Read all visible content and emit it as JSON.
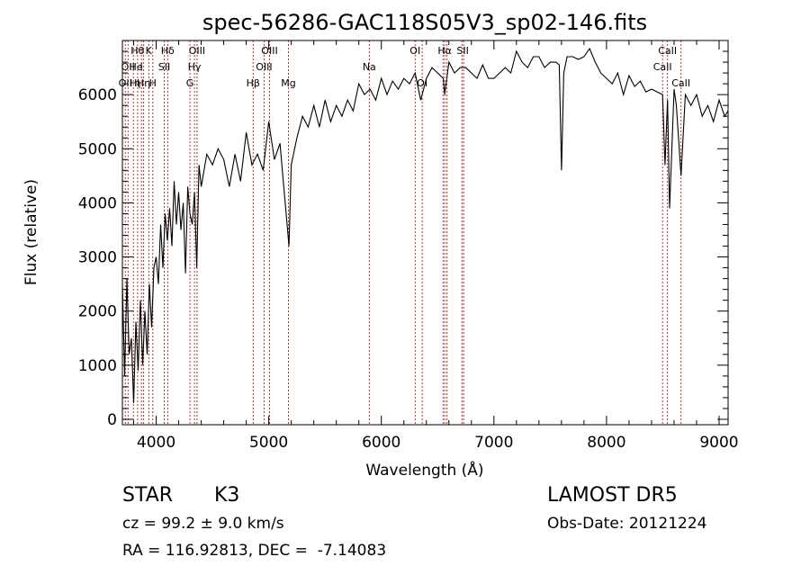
{
  "chart_data": {
    "type": "line",
    "title": "spec-56286-GAC118S05V3_sp02-146.fits",
    "xlabel": "Wavelength (Å)",
    "ylabel": "Flux (relative)",
    "xlim": [
      3700,
      9080
    ],
    "ylim": [
      -100,
      7000
    ],
    "x_ticks": [
      4000,
      5000,
      6000,
      7000,
      8000,
      9000
    ],
    "y_ticks": [
      0,
      1000,
      2000,
      3000,
      4000,
      5000,
      6000
    ],
    "x_tick_labels": [
      "4000",
      "5000",
      "6000",
      "7000",
      "8000",
      "9000"
    ],
    "y_tick_labels": [
      "0",
      "1000",
      "2000",
      "3000",
      "4000",
      "5000",
      "6000"
    ],
    "grid": false,
    "series": [
      {
        "color": "#000000",
        "x": [
          3700,
          3720,
          3740,
          3760,
          3780,
          3800,
          3820,
          3840,
          3860,
          3880,
          3900,
          3920,
          3940,
          3960,
          3980,
          4000,
          4020,
          4040,
          4060,
          4080,
          4100,
          4120,
          4140,
          4160,
          4180,
          4200,
          4220,
          4240,
          4260,
          4280,
          4300,
          4320,
          4340,
          4360,
          4380,
          4400,
          4450,
          4500,
          4550,
          4600,
          4650,
          4700,
          4750,
          4800,
          4850,
          4900,
          4950,
          5000,
          5050,
          5100,
          5150,
          5180,
          5200,
          5250,
          5300,
          5350,
          5400,
          5450,
          5500,
          5550,
          5600,
          5650,
          5700,
          5750,
          5800,
          5850,
          5900,
          5950,
          6000,
          6050,
          6100,
          6150,
          6200,
          6250,
          6300,
          6350,
          6400,
          6450,
          6500,
          6550,
          6563,
          6600,
          6650,
          6700,
          6750,
          6800,
          6850,
          6900,
          6950,
          7000,
          7050,
          7100,
          7150,
          7200,
          7250,
          7300,
          7350,
          7400,
          7450,
          7500,
          7550,
          7580,
          7600,
          7620,
          7650,
          7700,
          7750,
          7800,
          7850,
          7900,
          7950,
          8000,
          8050,
          8100,
          8150,
          8200,
          8250,
          8300,
          8350,
          8400,
          8450,
          8498,
          8520,
          8542,
          8560,
          8600,
          8620,
          8662,
          8700,
          8750,
          8800,
          8850,
          8900,
          8950,
          9000,
          9050,
          9080
        ],
        "y": [
          2500,
          800,
          2600,
          1200,
          1500,
          300,
          1800,
          900,
          2200,
          1000,
          2000,
          1200,
          2500,
          1700,
          2800,
          3000,
          2500,
          3600,
          2800,
          3800,
          3300,
          3900,
          3200,
          4400,
          3600,
          4200,
          3500,
          4000,
          2700,
          4300,
          3800,
          3600,
          4200,
          2800,
          4700,
          4300,
          4900,
          4700,
          5000,
          4800,
          4300,
          4900,
          4400,
          5300,
          4700,
          4900,
          4600,
          5500,
          4800,
          5100,
          3900,
          3200,
          4700,
          5200,
          5600,
          5400,
          5800,
          5400,
          5900,
          5500,
          5800,
          5600,
          5900,
          5700,
          6200,
          6000,
          6100,
          5900,
          6300,
          6000,
          6250,
          6100,
          6300,
          6200,
          6400,
          5900,
          6300,
          6500,
          6400,
          6300,
          6000,
          6600,
          6400,
          6500,
          6500,
          6400,
          6300,
          6550,
          6300,
          6300,
          6400,
          6500,
          6400,
          6800,
          6600,
          6500,
          6700,
          6700,
          6500,
          6600,
          6600,
          6550,
          4600,
          6400,
          6700,
          6700,
          6650,
          6700,
          6850,
          6600,
          6400,
          6300,
          6200,
          6400,
          6000,
          6350,
          6150,
          6250,
          6050,
          6100,
          6050,
          6000,
          4700,
          5900,
          3900,
          6100,
          5800,
          4500,
          6000,
          5800,
          6000,
          5600,
          5800,
          5500,
          5900,
          5600,
          5700
        ]
      }
    ],
    "line_labels": [
      {
        "wl": 3726,
        "row": 2,
        "text": "OII"
      },
      {
        "wl": 3750,
        "row": 1,
        "text": "OII"
      },
      {
        "wl": 3798,
        "row": 2,
        "text": "H"
      },
      {
        "wl": 3834,
        "row": 0,
        "text": "Hθ"
      },
      {
        "wl": 3820,
        "row": 1,
        "text": "He"
      },
      {
        "wl": 3835,
        "row": 2,
        "text": "η"
      },
      {
        "wl": 3869,
        "row": 1,
        "text": "I"
      },
      {
        "wl": 3889,
        "row": 2,
        "text": "Hη"
      },
      {
        "wl": 3934,
        "row": 0,
        "text": "K"
      },
      {
        "wl": 3970,
        "row": 2,
        "text": "H"
      },
      {
        "wl": 4072,
        "row": 1,
        "text": "SII"
      },
      {
        "wl": 4102,
        "row": 0,
        "text": "Hδ"
      },
      {
        "wl": 4300,
        "row": 2,
        "text": "G"
      },
      {
        "wl": 4340,
        "row": 1,
        "text": "Hγ"
      },
      {
        "wl": 4363,
        "row": 0,
        "text": "OIII"
      },
      {
        "wl": 4861,
        "row": 2,
        "text": "Hβ"
      },
      {
        "wl": 4959,
        "row": 1,
        "text": "OIII"
      },
      {
        "wl": 5007,
        "row": 0,
        "text": "OIII"
      },
      {
        "wl": 5175,
        "row": 2,
        "text": "Mg"
      },
      {
        "wl": 5893,
        "row": 1,
        "text": "Na"
      },
      {
        "wl": 6300,
        "row": 0,
        "text": "OI"
      },
      {
        "wl": 6363,
        "row": 2,
        "text": "OI"
      },
      {
        "wl": 6563,
        "row": 0,
        "text": "Hα"
      },
      {
        "wl": 6723,
        "row": 0,
        "text": "SII"
      },
      {
        "wl": 8498,
        "row": 1,
        "text": "CaII"
      },
      {
        "wl": 8542,
        "row": 0,
        "text": "CaII"
      },
      {
        "wl": 8662,
        "row": 2,
        "text": "CaII"
      }
    ],
    "line_markers": [
      3726,
      3750,
      3798,
      3835,
      3869,
      3889,
      3934,
      3970,
      4072,
      4102,
      4300,
      4340,
      4363,
      4861,
      4959,
      5007,
      5175,
      5893,
      6300,
      6363,
      6548,
      6563,
      6583,
      6716,
      6731,
      8498,
      8542,
      8662
    ],
    "marker_color": "#b22222"
  },
  "info": {
    "classification": "STAR",
    "subclass": "K3",
    "redshift_text": "cz = 99.2 ± 9.0 km/s",
    "coords_text": "RA = 116.92813, DEC =  -7.14083",
    "survey": "LAMOST DR5",
    "obs_date": "Obs-Date: 20121224"
  }
}
